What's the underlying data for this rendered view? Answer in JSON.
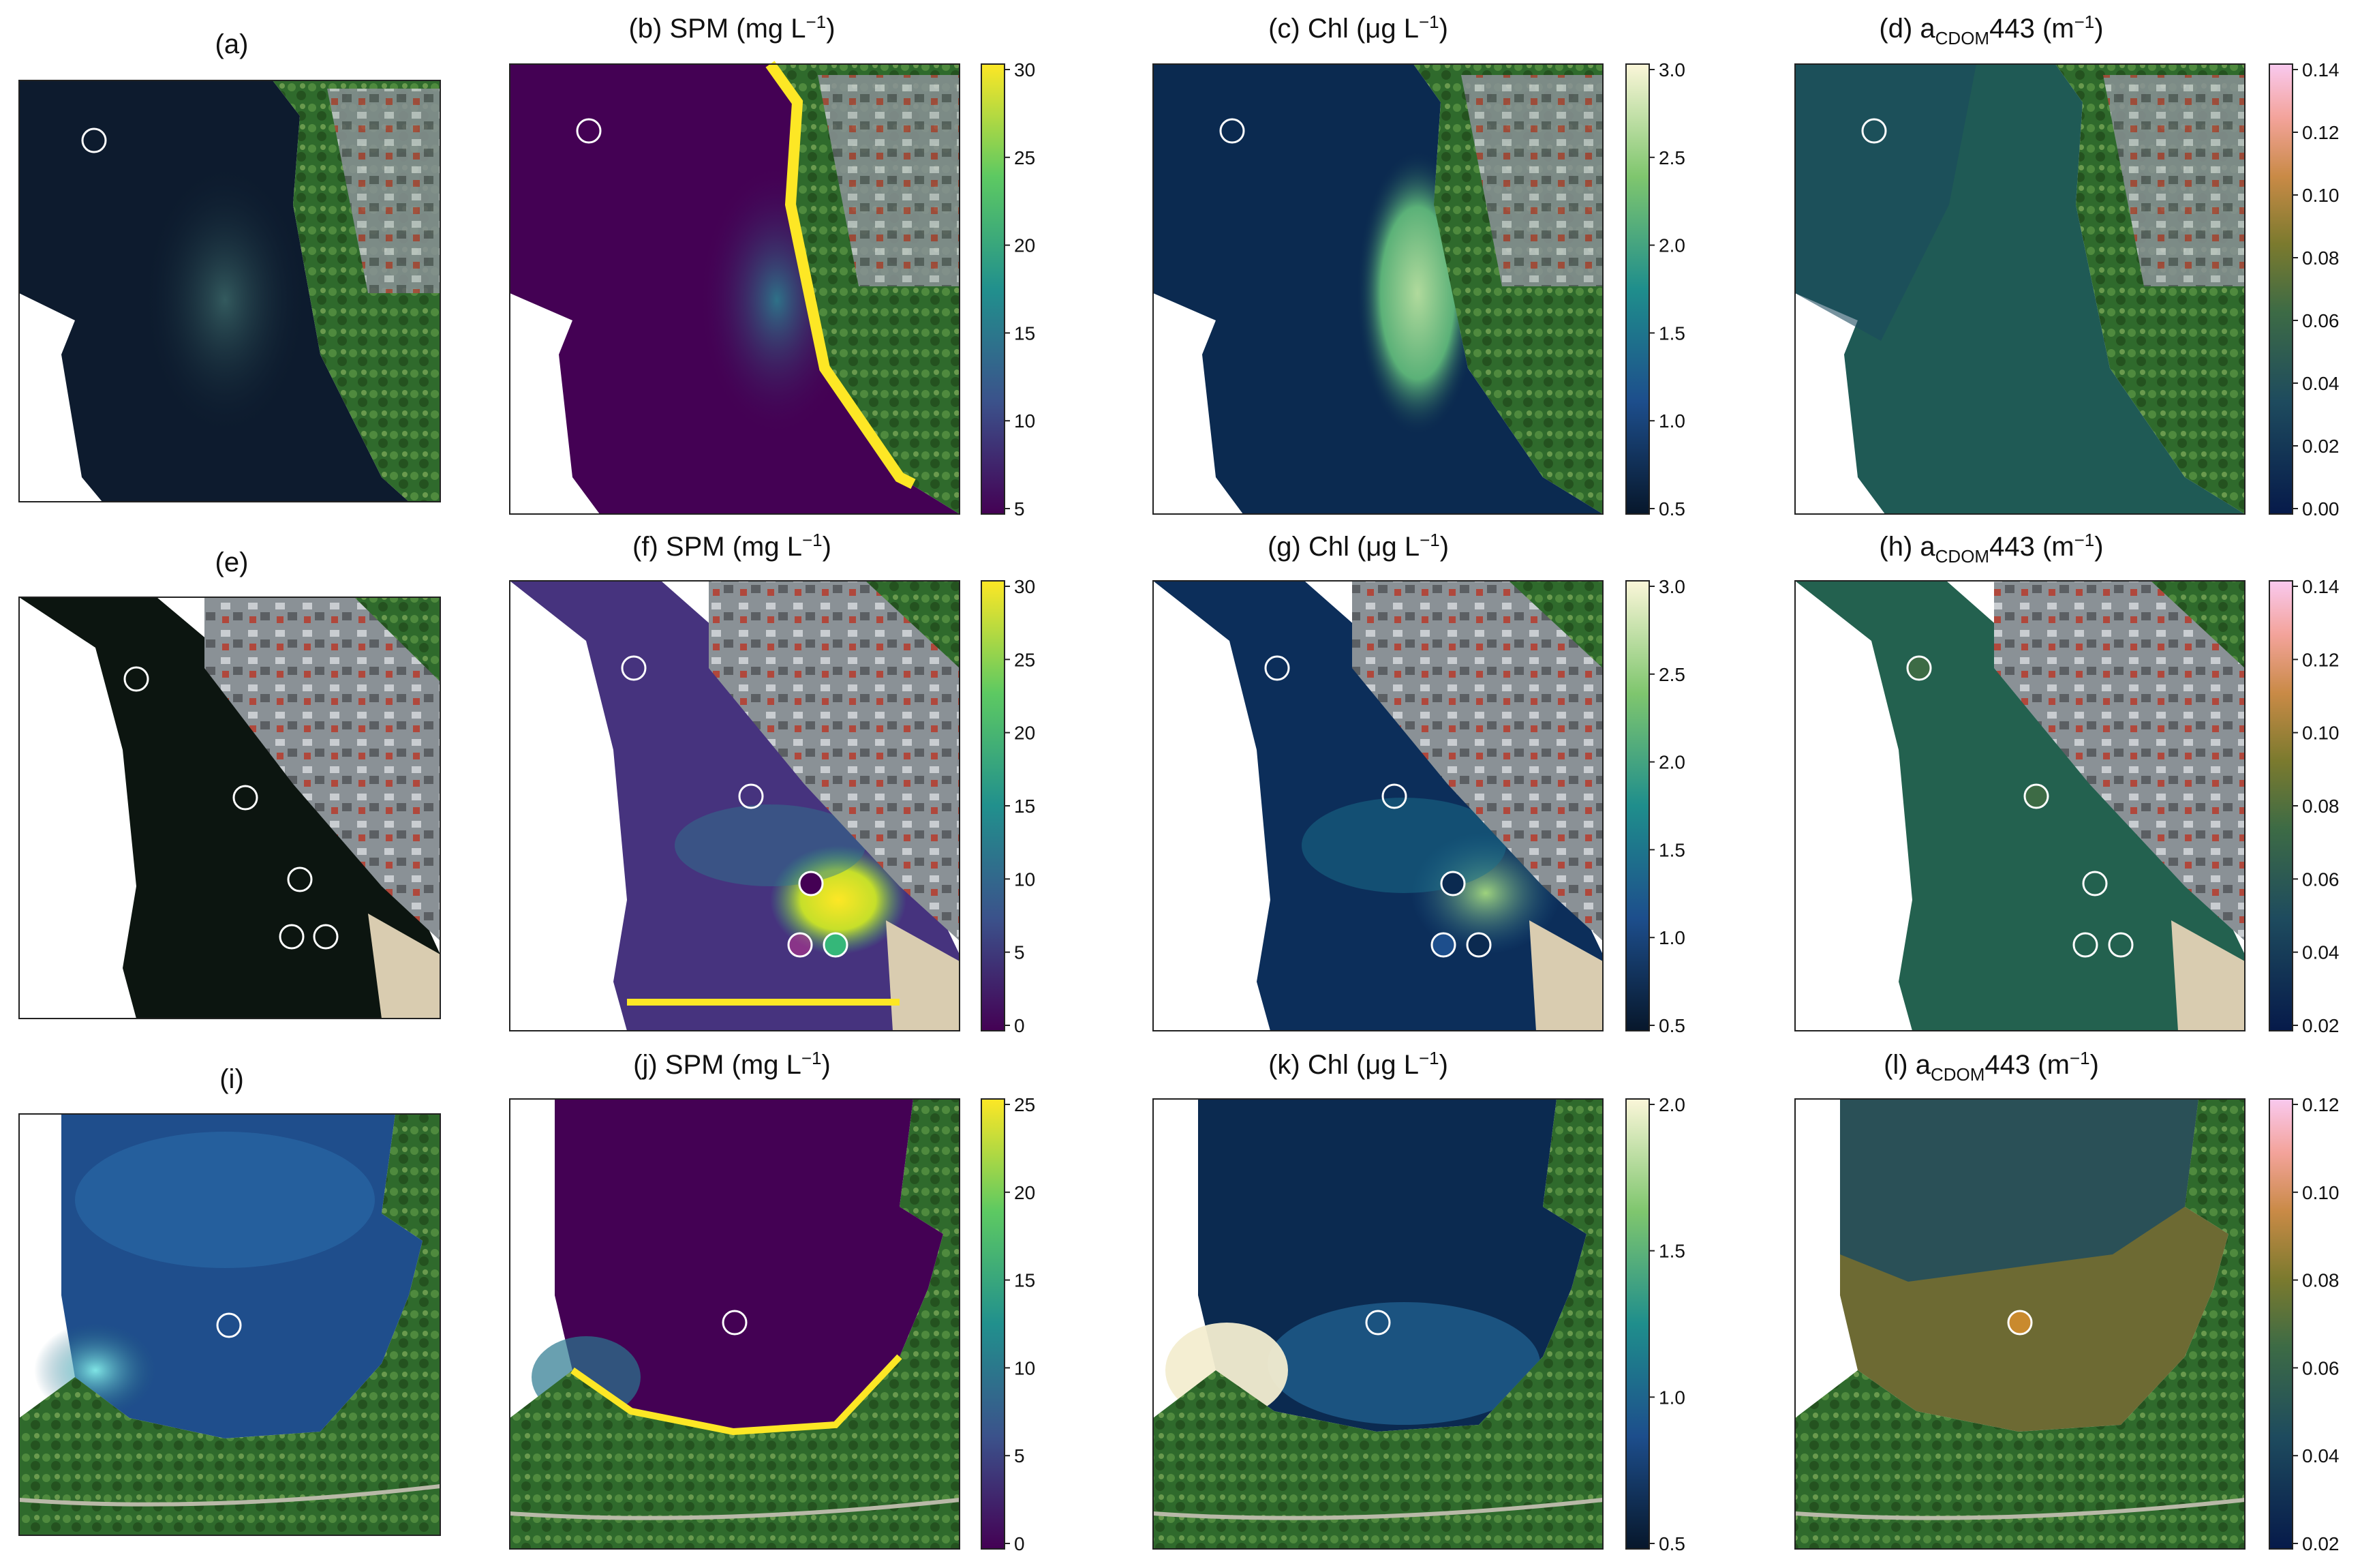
{
  "figure": {
    "rows": [
      {
        "panels": [
          {
            "label": "(a)",
            "kind": "rgb"
          },
          {
            "label_prefix": "(b) SPM (mg L",
            "exp": "−1",
            "label_suffix": ")",
            "kind": "spm"
          },
          {
            "label_prefix": "(c) Chl (μg L",
            "exp": "−1",
            "label_suffix": ")",
            "kind": "chl"
          },
          {
            "label_prefix": "(d) a",
            "sub": "CDOM",
            "label_mid": "443 (m",
            "exp": "−1",
            "label_suffix": ")",
            "kind": "cdom"
          }
        ],
        "colorbars": [
          {
            "colormap": "viridis",
            "ticks": [
              "30",
              "25",
              "20",
              "15",
              "10",
              "5"
            ]
          },
          {
            "colormap": "ygb",
            "ticks": [
              "3.0",
              "2.5",
              "2.0",
              "1.5",
              "1.0",
              "0.5"
            ]
          },
          {
            "colormap": "batlow",
            "ticks": [
              "0.14",
              "0.12",
              "0.10",
              "0.08",
              "0.06",
              "0.04",
              "0.02",
              "0.00"
            ]
          }
        ]
      },
      {
        "panels": [
          {
            "label": "(e)",
            "kind": "rgb"
          },
          {
            "label_prefix": "(f) SPM (mg L",
            "exp": "−1",
            "label_suffix": ")",
            "kind": "spm"
          },
          {
            "label_prefix": "(g) Chl (μg L",
            "exp": "−1",
            "label_suffix": ")",
            "kind": "chl"
          },
          {
            "label_prefix": "(h) a",
            "sub": "CDOM",
            "label_mid": "443 (m",
            "exp": "−1",
            "label_suffix": ")",
            "kind": "cdom"
          }
        ],
        "colorbars": [
          {
            "colormap": "viridis",
            "ticks": [
              "30",
              "25",
              "20",
              "15",
              "10",
              "5",
              "0"
            ]
          },
          {
            "colormap": "ygb",
            "ticks": [
              "3.0",
              "2.5",
              "2.0",
              "1.5",
              "1.0",
              "0.5"
            ]
          },
          {
            "colormap": "batlow",
            "ticks": [
              "0.14",
              "0.12",
              "0.10",
              "0.08",
              "0.06",
              "0.04",
              "0.02"
            ]
          }
        ]
      },
      {
        "panels": [
          {
            "label": "(i)",
            "kind": "rgb"
          },
          {
            "label_prefix": "(j) SPM (mg L",
            "exp": "−1",
            "label_suffix": ")",
            "kind": "spm"
          },
          {
            "label_prefix": "(k) Chl (μg L",
            "exp": "−1",
            "label_suffix": ")",
            "kind": "chl"
          },
          {
            "label_prefix": "(l) a",
            "sub": "CDOM",
            "label_mid": "443 (m",
            "exp": "−1",
            "label_suffix": ")",
            "kind": "cdom"
          }
        ],
        "colorbars": [
          {
            "colormap": "viridis",
            "ticks": [
              "25",
              "20",
              "15",
              "10",
              "5",
              "0"
            ]
          },
          {
            "colormap": "ygb",
            "ticks": [
              "2.0",
              "1.5",
              "1.0",
              "0.5"
            ]
          },
          {
            "colormap": "batlow",
            "ticks": [
              "0.12",
              "0.10",
              "0.08",
              "0.06",
              "0.04",
              "0.02"
            ]
          }
        ]
      }
    ],
    "colors": {
      "water_dark": "#0d1b2e",
      "spm_background": "#440154",
      "chl_background": "#0b2a50",
      "cdom_background": "#1f5a55",
      "land_green": "#3e6d33",
      "urban_grey": "#8f959a",
      "sand": "#d9ccb0",
      "marker": "#ffffff"
    }
  }
}
